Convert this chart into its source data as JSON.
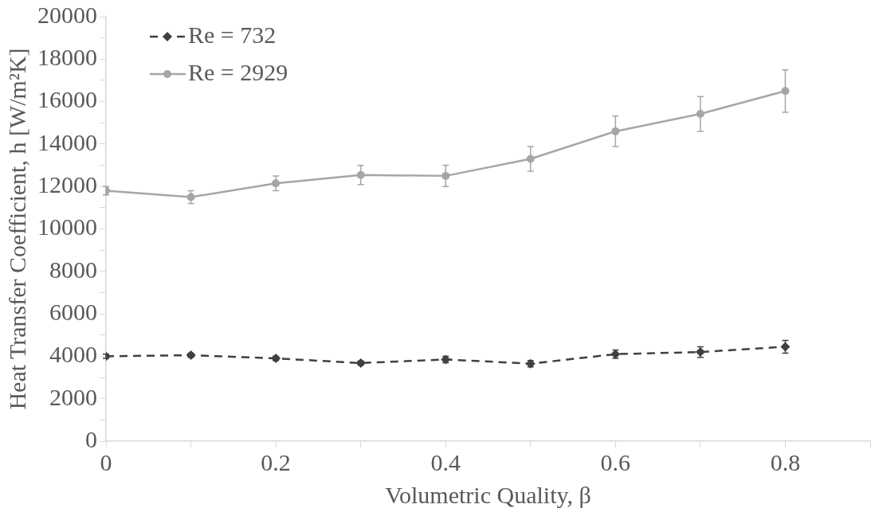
{
  "chart_data": {
    "type": "line",
    "xlabel": "Volumetric Quality, β",
    "ylabel": "Heat Transfer Coefficient, h [W/m²K]",
    "x": [
      0,
      0.1,
      0.2,
      0.3,
      0.4,
      0.5,
      0.6,
      0.7,
      0.8
    ],
    "series": [
      {
        "name": "Re = 732",
        "color": "#404040",
        "marker": "diamond",
        "line_style": "dashed",
        "values": [
          4000,
          4050,
          3900,
          3680,
          3850,
          3650,
          4100,
          4200,
          4450
        ],
        "errors": [
          100,
          100,
          100,
          100,
          150,
          150,
          200,
          250,
          300
        ]
      },
      {
        "name": "Re = 2929",
        "color": "#a6a6a6",
        "marker": "circle",
        "line_style": "solid",
        "values": [
          11800,
          11500,
          12150,
          12540,
          12500,
          13300,
          14600,
          15420,
          16500
        ],
        "errors": [
          200,
          300,
          350,
          450,
          500,
          580,
          720,
          820,
          1000
        ]
      }
    ],
    "xlim": [
      0,
      0.9
    ],
    "xticks": [
      0,
      {
        "value": 0.1,
        "label": null
      },
      0.2,
      {
        "value": 0.3,
        "label": null
      },
      0.4,
      {
        "value": 0.5,
        "label": null
      },
      0.6,
      {
        "value": 0.7,
        "label": null
      },
      0.8,
      {
        "value": 0.9,
        "label": null
      }
    ],
    "ylim": [
      0,
      20000
    ],
    "yticks": [
      0,
      {
        "value": 1000,
        "label": null
      },
      2000,
      {
        "value": 3000,
        "label": null
      },
      4000,
      {
        "value": 5000,
        "label": null
      },
      6000,
      {
        "value": 7000,
        "label": null
      },
      8000,
      {
        "value": 9000,
        "label": null
      },
      10000,
      {
        "value": 11000,
        "label": null
      },
      12000,
      {
        "value": 13000,
        "label": null
      },
      14000,
      {
        "value": 15000,
        "label": null
      },
      16000,
      {
        "value": 17000,
        "label": null
      },
      18000,
      {
        "value": 19000,
        "label": null
      },
      20000
    ],
    "grid": false,
    "legend": "top left"
  }
}
